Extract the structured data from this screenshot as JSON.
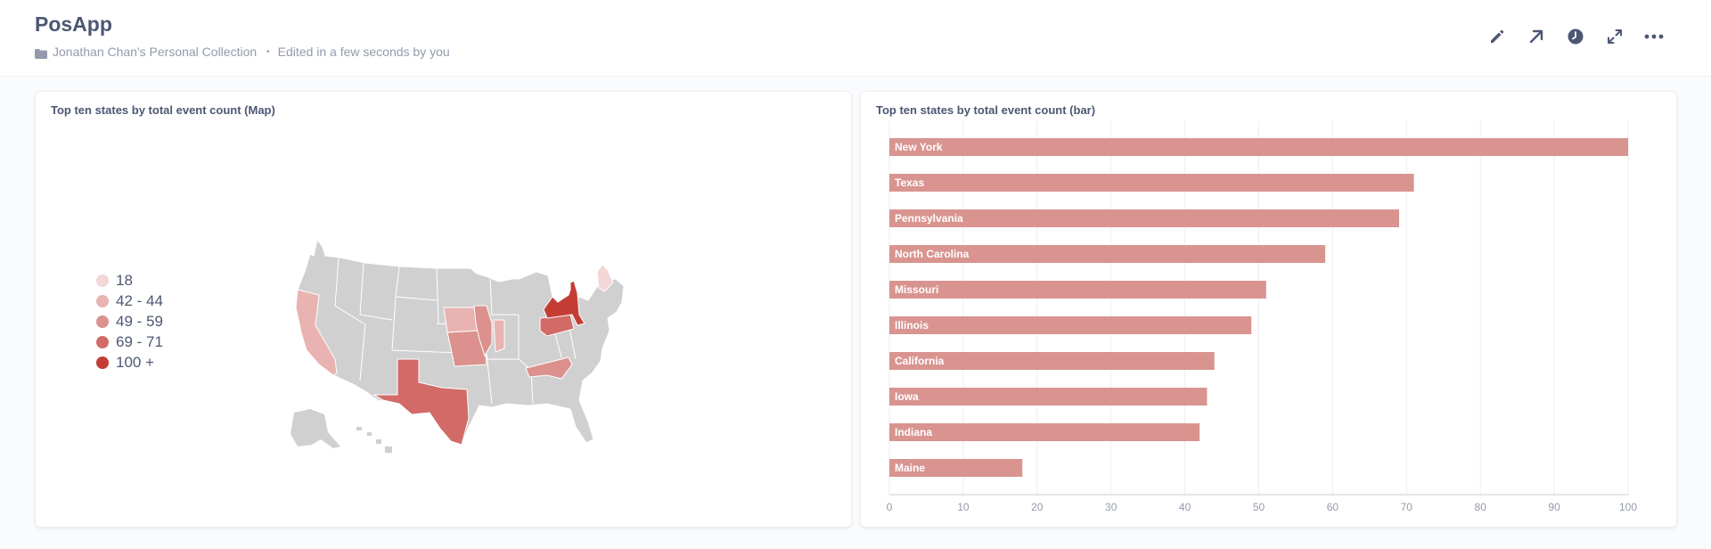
{
  "header": {
    "title": "PosApp",
    "collection": "Jonathan Chan's Personal Collection",
    "separator": "•",
    "edited": "Edited in a few seconds by you",
    "actions": [
      "pencil-icon",
      "arrow-up-right-icon",
      "clock-icon",
      "expand-icon",
      "more-icon"
    ]
  },
  "map_card": {
    "title": "Top ten states by total event count (Map)",
    "legend": [
      {
        "label": "18",
        "color": "#f3d6d6"
      },
      {
        "label": "42 - 44",
        "color": "#e8b3b1"
      },
      {
        "label": "49 - 59",
        "color": "#dc918e"
      },
      {
        "label": "69 - 71",
        "color": "#d26b68"
      },
      {
        "label": "100 +",
        "color": "#c43d35"
      }
    ],
    "base_color": "#d0d0d0"
  },
  "bar_card": {
    "title": "Top ten states by total event count (bar)",
    "bar_color": "#d99490"
  },
  "chart_data": {
    "type": "bar",
    "orientation": "horizontal",
    "title": "Top ten states by total event count (bar)",
    "categories": [
      "New York",
      "Texas",
      "Pennsylvania",
      "North Carolina",
      "Missouri",
      "Illinois",
      "California",
      "Iowa",
      "Indiana",
      "Maine"
    ],
    "values": [
      100,
      71,
      69,
      59,
      51,
      49,
      44,
      43,
      42,
      18
    ],
    "xlim": [
      0,
      100
    ],
    "xticks": [
      "0",
      "10",
      "20",
      "30",
      "40",
      "50",
      "60",
      "70",
      "80",
      "90",
      "100"
    ],
    "grid": true
  }
}
